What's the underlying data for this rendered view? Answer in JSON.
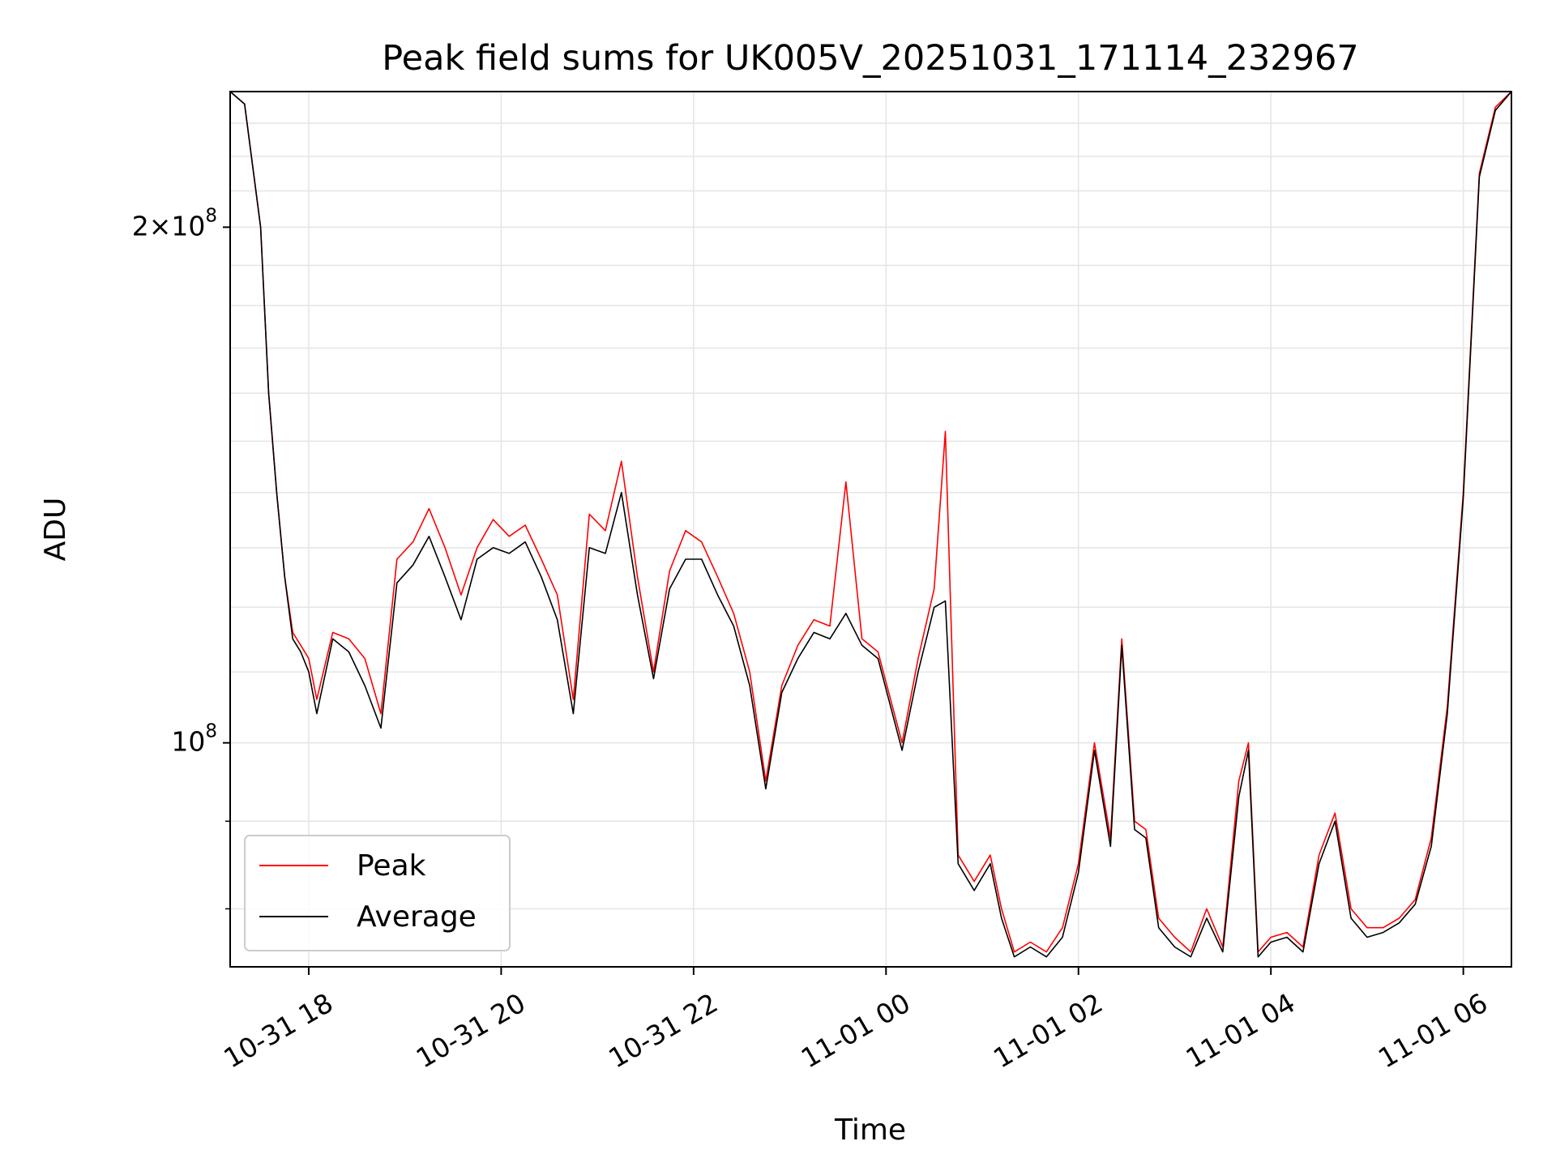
{
  "chart_data": {
    "type": "line",
    "title": "Peak field sums for UK005V_20251031_171114_232967",
    "xlabel": "Time",
    "ylabel": "ADU",
    "yscale": "log",
    "ylim": [
      74000000,
      240000000
    ],
    "xlim": [
      "2025-10-31 17:11",
      "2025-11-01 06:30"
    ],
    "grid": true,
    "legend_location": "lower-left",
    "x_ticks": [
      "10-31 18",
      "10-31 20",
      "10-31 22",
      "11-01 00",
      "11-01 02",
      "11-01 04",
      "11-01 06"
    ],
    "y_tick_labels": {
      "major_2e8": "2×10",
      "major_2e8_exp": "8",
      "major_1e8": "10",
      "major_1e8_exp": "8"
    },
    "x": [
      "2025-10-31 17:11",
      "2025-10-31 17:20",
      "2025-10-31 17:30",
      "2025-10-31 17:35",
      "2025-10-31 17:40",
      "2025-10-31 17:45",
      "2025-10-31 17:50",
      "2025-10-31 17:55",
      "2025-10-31 18:00",
      "2025-10-31 18:05",
      "2025-10-31 18:15",
      "2025-10-31 18:25",
      "2025-10-31 18:35",
      "2025-10-31 18:45",
      "2025-10-31 18:55",
      "2025-10-31 19:05",
      "2025-10-31 19:15",
      "2025-10-31 19:25",
      "2025-10-31 19:35",
      "2025-10-31 19:45",
      "2025-10-31 19:55",
      "2025-10-31 20:05",
      "2025-10-31 20:15",
      "2025-10-31 20:25",
      "2025-10-31 20:35",
      "2025-10-31 20:45",
      "2025-10-31 20:55",
      "2025-10-31 21:05",
      "2025-10-31 21:15",
      "2025-10-31 21:25",
      "2025-10-31 21:35",
      "2025-10-31 21:45",
      "2025-10-31 21:55",
      "2025-10-31 22:05",
      "2025-10-31 22:15",
      "2025-10-31 22:25",
      "2025-10-31 22:35",
      "2025-10-31 22:45",
      "2025-10-31 22:55",
      "2025-10-31 23:05",
      "2025-10-31 23:15",
      "2025-10-31 23:25",
      "2025-10-31 23:35",
      "2025-10-31 23:45",
      "2025-10-31 23:55",
      "2025-11-01 00:10",
      "2025-11-01 00:20",
      "2025-11-01 00:30",
      "2025-11-01 00:37",
      "2025-11-01 00:45",
      "2025-11-01 00:55",
      "2025-11-01 01:05",
      "2025-11-01 01:12",
      "2025-11-01 01:20",
      "2025-11-01 01:30",
      "2025-11-01 01:40",
      "2025-11-01 01:50",
      "2025-11-01 02:00",
      "2025-11-01 02:10",
      "2025-11-01 02:20",
      "2025-11-01 02:27",
      "2025-11-01 02:35",
      "2025-11-01 02:42",
      "2025-11-01 02:50",
      "2025-11-01 03:00",
      "2025-11-01 03:10",
      "2025-11-01 03:20",
      "2025-11-01 03:30",
      "2025-11-01 03:40",
      "2025-11-01 03:46",
      "2025-11-01 03:52",
      "2025-11-01 04:00",
      "2025-11-01 04:10",
      "2025-11-01 04:20",
      "2025-11-01 04:30",
      "2025-11-01 04:40",
      "2025-11-01 04:50",
      "2025-11-01 05:00",
      "2025-11-01 05:10",
      "2025-11-01 05:20",
      "2025-11-01 05:30",
      "2025-11-01 05:40",
      "2025-11-01 05:50",
      "2025-11-01 06:00",
      "2025-11-01 06:10",
      "2025-11-01 06:20",
      "2025-11-01 06:30"
    ],
    "series": [
      {
        "name": "Peak",
        "color": "#ff0000",
        "values": [
          240000000,
          236000000,
          200000000,
          160000000,
          140000000,
          125000000,
          116000000,
          114000000,
          112000000,
          106000000,
          116000000,
          115000000,
          112000000,
          104000000,
          128000000,
          131000000,
          137000000,
          130000000,
          122000000,
          130000000,
          135000000,
          132000000,
          134000000,
          128000000,
          122000000,
          106000000,
          136000000,
          133000000,
          146000000,
          125000000,
          110000000,
          126000000,
          133000000,
          131000000,
          125000000,
          119000000,
          110000000,
          95000000,
          108000000,
          114000000,
          118000000,
          117000000,
          142000000,
          115000000,
          113000000,
          100000000,
          112000000,
          123000000,
          152000000,
          86000000,
          83000000,
          86000000,
          80000000,
          75500000,
          76500000,
          75500000,
          78000000,
          85000000,
          100000000,
          88000000,
          115000000,
          90000000,
          89000000,
          79000000,
          77000000,
          75500000,
          80000000,
          76000000,
          95000000,
          100000000,
          75500000,
          77000000,
          77500000,
          76000000,
          86000000,
          91000000,
          80000000,
          78000000,
          78000000,
          79000000,
          81000000,
          88000000,
          105000000,
          140000000,
          215000000,
          235000000,
          240000000
        ]
      },
      {
        "name": "Average",
        "color": "#000000",
        "values": [
          240000000,
          236000000,
          200000000,
          160000000,
          140000000,
          125000000,
          115000000,
          113000000,
          110000000,
          104000000,
          115000000,
          113000000,
          108000000,
          102000000,
          124000000,
          127000000,
          132000000,
          125000000,
          118000000,
          128000000,
          130000000,
          129000000,
          131000000,
          125000000,
          118000000,
          104000000,
          130000000,
          129000000,
          140000000,
          122000000,
          109000000,
          123000000,
          128000000,
          128000000,
          122000000,
          117000000,
          108000000,
          94000000,
          107000000,
          112000000,
          116000000,
          115000000,
          119000000,
          114000000,
          112000000,
          99000000,
          110000000,
          120000000,
          121000000,
          85000000,
          82000000,
          85000000,
          79000000,
          75000000,
          76000000,
          75000000,
          77000000,
          84000000,
          99000000,
          87000000,
          114000000,
          89000000,
          88000000,
          78000000,
          76000000,
          75000000,
          79000000,
          75500000,
          93000000,
          99000000,
          75000000,
          76500000,
          77000000,
          75500000,
          85000000,
          90000000,
          79000000,
          77000000,
          77500000,
          78500000,
          80500000,
          87000000,
          104000000,
          139000000,
          214000000,
          234000000,
          240000000
        ]
      }
    ]
  }
}
